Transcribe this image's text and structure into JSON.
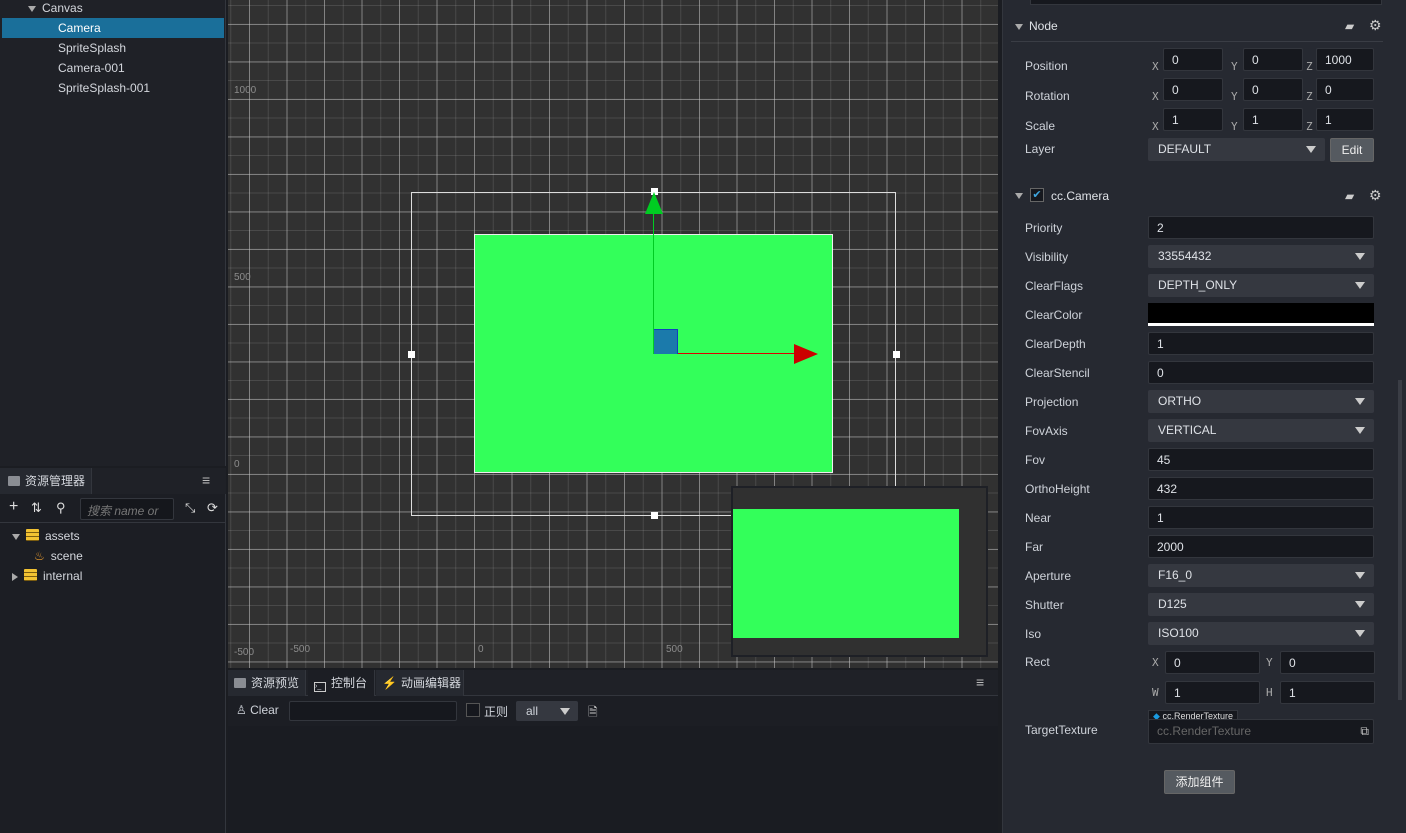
{
  "hierarchy": {
    "items": [
      {
        "label": "Canvas",
        "expanded": true
      },
      {
        "label": "Camera",
        "selected": true
      },
      {
        "label": "SpriteSplash"
      },
      {
        "label": "Camera-001"
      },
      {
        "label": "SpriteSplash-001"
      }
    ]
  },
  "assets": {
    "title": "资源管理器",
    "search_placeholder": "搜索 name or",
    "items": [
      {
        "label": "assets",
        "icon": "database-icon",
        "expanded": true
      },
      {
        "label": "scene",
        "icon": "scene-icon"
      },
      {
        "label": "internal",
        "icon": "database-icon",
        "expanded": false
      }
    ]
  },
  "scene": {
    "y_labels": [
      "1000",
      "500",
      "0",
      "-500"
    ],
    "x_labels": [
      "-500",
      "0",
      "500"
    ],
    "colors": {
      "sprite": "#33ff5a",
      "x_axis": "#dd0000",
      "y_axis": "#00cc22",
      "grid_bg": "#313131"
    }
  },
  "console": {
    "tabs": [
      "资源预览",
      "控制台",
      "动画编辑器"
    ],
    "clear_label": "Clear",
    "filter_value": "",
    "regex_label": "正则",
    "level_value": "all"
  },
  "inspector": {
    "node": {
      "title": "Node",
      "position": {
        "label": "Position",
        "x": "0",
        "y": "0",
        "z": "1000"
      },
      "rotation": {
        "label": "Rotation",
        "x": "0",
        "y": "0",
        "z": "0"
      },
      "scale": {
        "label": "Scale",
        "x": "1",
        "y": "1",
        "z": "1"
      },
      "layer": {
        "label": "Layer",
        "value": "DEFAULT",
        "edit_label": "Edit"
      }
    },
    "camera": {
      "title": "cc.Camera",
      "enabled": true,
      "props": [
        {
          "label": "Priority",
          "value": "2",
          "type": "input"
        },
        {
          "label": "Visibility",
          "value": "33554432",
          "type": "select"
        },
        {
          "label": "ClearFlags",
          "value": "DEPTH_ONLY",
          "type": "select"
        },
        {
          "label": "ClearColor",
          "value": "#000000",
          "type": "color"
        },
        {
          "label": "ClearDepth",
          "value": "1",
          "type": "input"
        },
        {
          "label": "ClearStencil",
          "value": "0",
          "type": "input"
        },
        {
          "label": "Projection",
          "value": "ORTHO",
          "type": "select"
        },
        {
          "label": "FovAxis",
          "value": "VERTICAL",
          "type": "select"
        },
        {
          "label": "Fov",
          "value": "45",
          "type": "input"
        },
        {
          "label": "OrthoHeight",
          "value": "432",
          "type": "input"
        },
        {
          "label": "Near",
          "value": "1",
          "type": "input"
        },
        {
          "label": "Far",
          "value": "2000",
          "type": "input"
        },
        {
          "label": "Aperture",
          "value": "F16_0",
          "type": "select"
        },
        {
          "label": "Shutter",
          "value": "D125",
          "type": "select"
        },
        {
          "label": "Iso",
          "value": "ISO100",
          "type": "select"
        }
      ],
      "rect": {
        "label": "Rect",
        "x": "0",
        "y": "0",
        "w": "1",
        "h": "1"
      },
      "target_texture": {
        "label": "TargetTexture",
        "type_tag": "cc.RenderTexture",
        "placeholder": "cc.RenderTexture"
      }
    },
    "add_component_label": "添加组件"
  }
}
